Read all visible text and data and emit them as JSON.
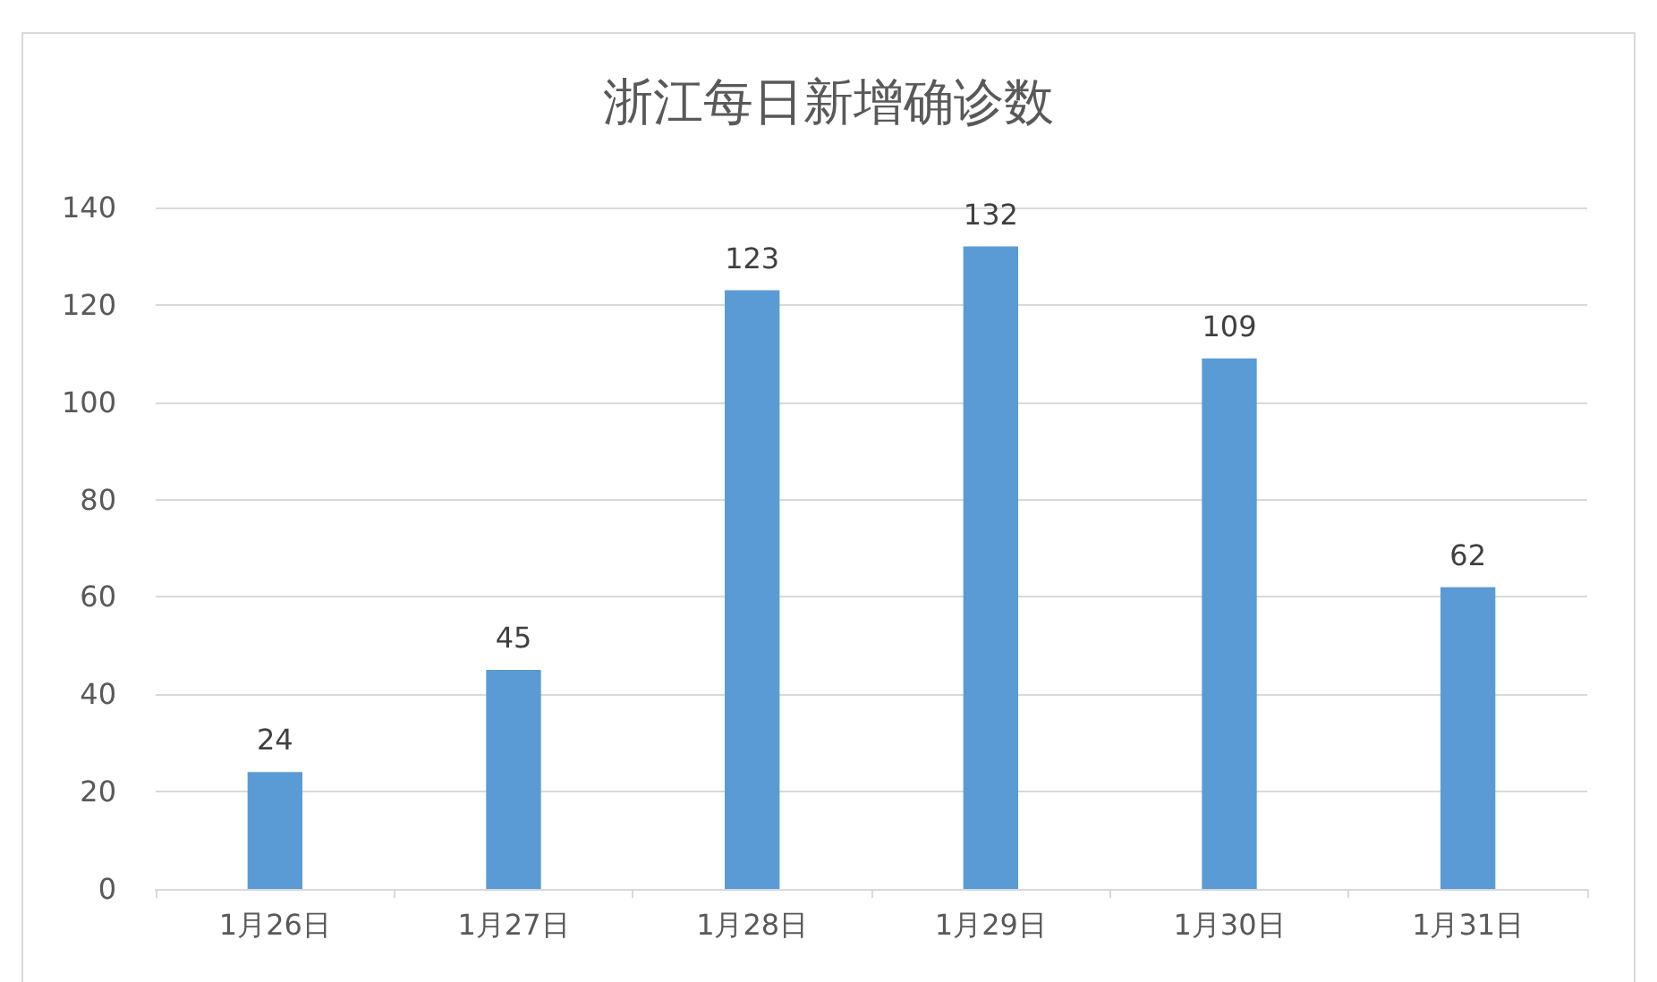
{
  "chart_data": {
    "type": "bar",
    "title": "浙江每日新增确诊数",
    "categories": [
      "1月26日",
      "1月27日",
      "1月28日",
      "1月29日",
      "1月30日",
      "1月31日"
    ],
    "values": [
      24,
      45,
      123,
      132,
      109,
      62
    ],
    "color": "#5b9bd5",
    "ylim": [
      0,
      140
    ],
    "yticks": [
      0,
      20,
      40,
      60,
      80,
      100,
      120,
      140
    ],
    "grid": "y",
    "data_labels": true
  }
}
